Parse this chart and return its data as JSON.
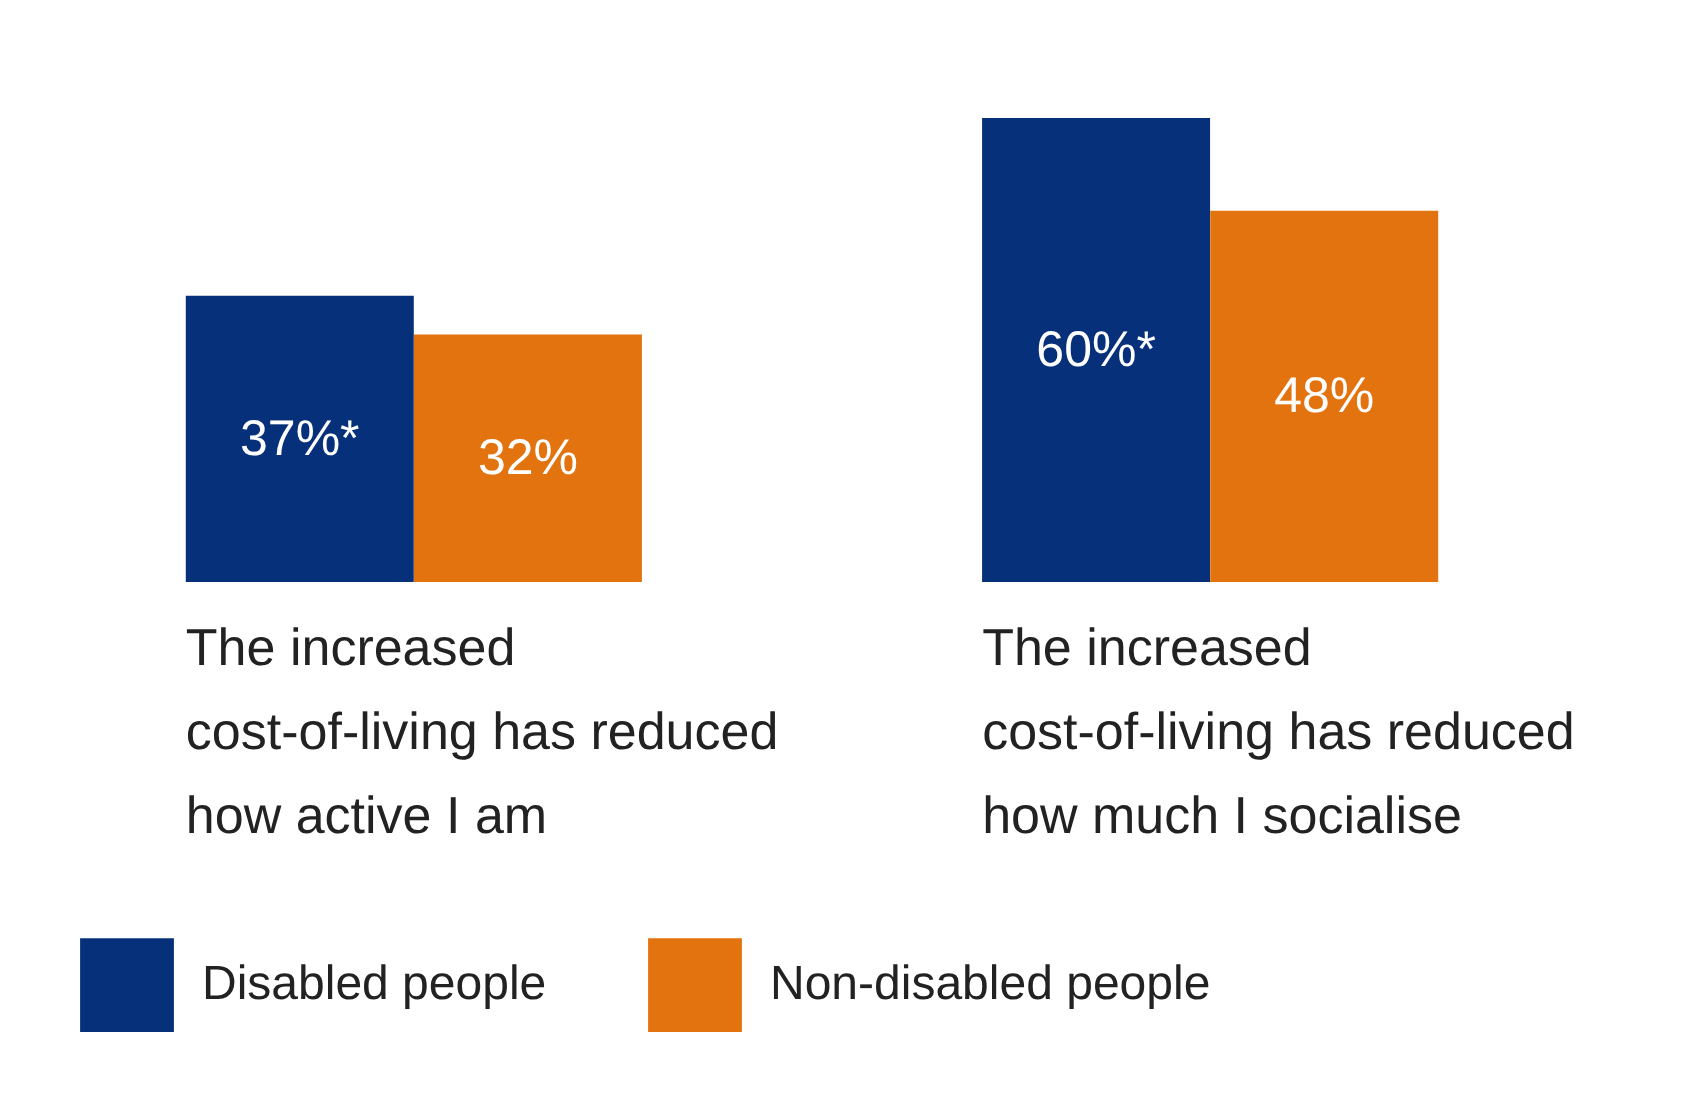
{
  "chart_data": {
    "type": "bar",
    "categories": [
      "The increased cost-of-living has reduced how active I am",
      "The increased cost-of-living has reduced how much I socialise"
    ],
    "series": [
      {
        "name": "Disabled people",
        "color": "#07307a",
        "values": [
          37,
          60
        ],
        "value_labels": [
          "37%*",
          "60%*"
        ]
      },
      {
        "name": "Non-disabled people",
        "color": "#e2730f",
        "values": [
          32,
          48
        ],
        "value_labels": [
          "32%",
          "48%"
        ]
      }
    ],
    "legend": "bottom",
    "grid": false
  }
}
